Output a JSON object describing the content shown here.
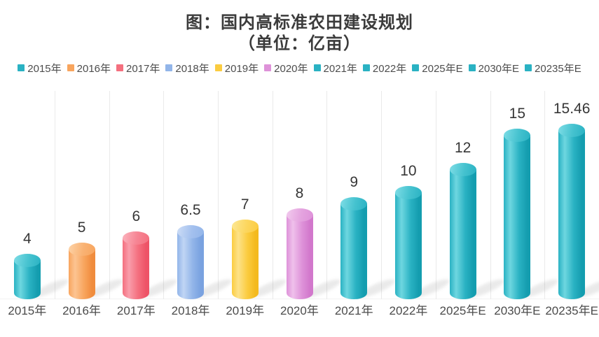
{
  "title": {
    "line1": "图：国内高标准农田建设规划",
    "line2": "（单位：亿亩）"
  },
  "chart_data": {
    "type": "bar",
    "title": "图：国内高标准农田建设规划",
    "subtitle": "（单位：亿亩）",
    "unit": "亿亩",
    "bar_style": "3d-cylinder",
    "legend_position": "top",
    "grid": "vertical category separators, no y-axis shown",
    "categories": [
      "2015年",
      "2016年",
      "2017年",
      "2018年",
      "2019年",
      "2020年",
      "2021年",
      "2022年",
      "2025年E",
      "2030年E",
      "20235年E"
    ],
    "values": [
      4,
      5,
      6,
      6.5,
      7,
      8,
      9,
      10,
      12,
      15,
      15.46
    ],
    "value_labels": [
      "4",
      "5",
      "6",
      "6.5",
      "7",
      "8",
      "9",
      "10",
      "12",
      "15",
      "15.46"
    ],
    "ylim": [
      0,
      18.35
    ],
    "colors": [
      {
        "name": "teal",
        "light": "#6ed7e0",
        "main": "#2ab2c3",
        "dark": "#149daf",
        "top": "#45c2cf",
        "topEdge": "#7fdde6"
      },
      {
        "name": "orange",
        "light": "#fcc492",
        "main": "#f8a55e",
        "dark": "#f08c3d",
        "top": "#f9b273",
        "topEdge": "#fdd3a8"
      },
      {
        "name": "red",
        "light": "#f99dab",
        "main": "#f4707f",
        "dark": "#ee5367",
        "top": "#f68493",
        "topEdge": "#fbb3bd"
      },
      {
        "name": "blue",
        "light": "#c0d5f4",
        "main": "#92b5e9",
        "dark": "#7aa2e0",
        "top": "#a3c0ee",
        "topEdge": "#cdddf6"
      },
      {
        "name": "yellow",
        "light": "#fde289",
        "main": "#fbcc40",
        "dark": "#f4ba1e",
        "top": "#fcd65e",
        "topEdge": "#fde895"
      },
      {
        "name": "orchid",
        "light": "#efc0eb",
        "main": "#de92d9",
        "dark": "#d278cc",
        "top": "#e4a3df",
        "topEdge": "#f2cbee"
      },
      {
        "name": "teal",
        "light": "#6ed7e0",
        "main": "#2ab2c3",
        "dark": "#149daf",
        "top": "#45c2cf",
        "topEdge": "#7fdde6"
      },
      {
        "name": "teal",
        "light": "#6ed7e0",
        "main": "#2ab2c3",
        "dark": "#149daf",
        "top": "#45c2cf",
        "topEdge": "#7fdde6"
      },
      {
        "name": "teal",
        "light": "#6ed7e0",
        "main": "#2ab2c3",
        "dark": "#149daf",
        "top": "#45c2cf",
        "topEdge": "#7fdde6"
      },
      {
        "name": "teal",
        "light": "#6ed7e0",
        "main": "#2ab2c3",
        "dark": "#149daf",
        "top": "#45c2cf",
        "topEdge": "#7fdde6"
      },
      {
        "name": "teal",
        "light": "#6ed7e0",
        "main": "#2ab2c3",
        "dark": "#149daf",
        "top": "#45c2cf",
        "topEdge": "#7fdde6"
      }
    ],
    "text_colors": {
      "title": "#3b3b3b",
      "legend": "#4d4d4d",
      "value_label": "#363636",
      "x_axis": "#4b4b4b"
    }
  }
}
